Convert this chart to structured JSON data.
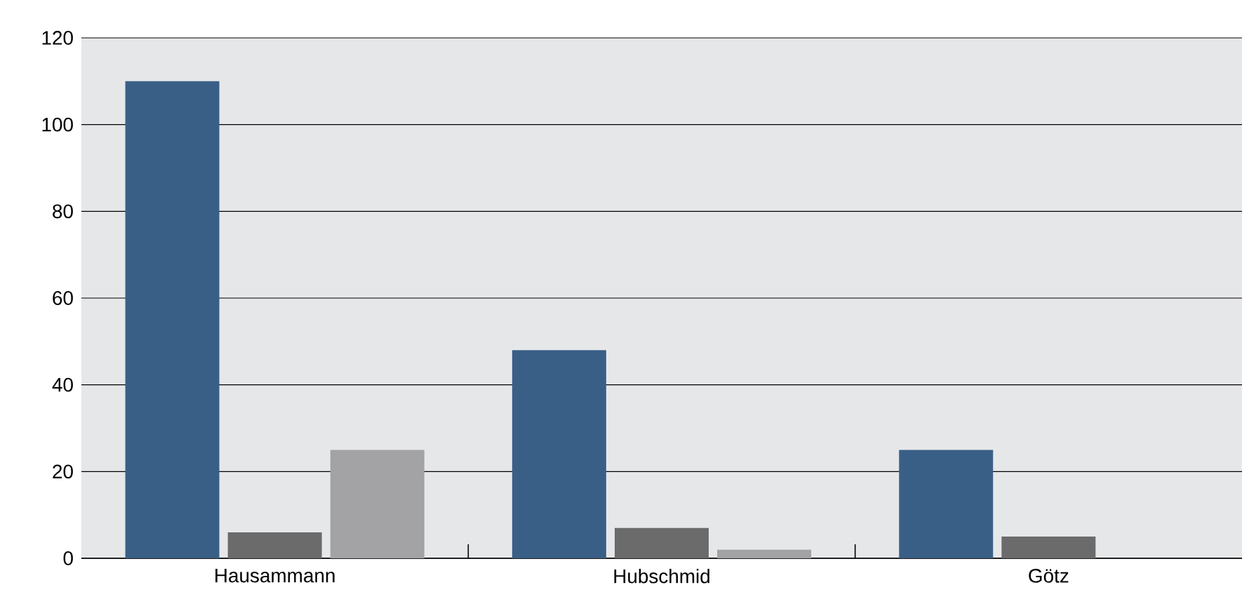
{
  "chart_data": {
    "type": "bar",
    "categories": [
      "Hausammann",
      "Hubschmid",
      "Götz"
    ],
    "series": [
      {
        "color": "#3a5f87",
        "values": [
          110,
          48,
          25
        ]
      },
      {
        "color": "#6b6b6b",
        "values": [
          6,
          7,
          5
        ]
      },
      {
        "color": "#a3a3a6",
        "values": [
          25,
          2,
          0
        ]
      }
    ],
    "ylim": [
      0,
      120
    ],
    "yticks": [
      0,
      20,
      40,
      60,
      80,
      100,
      120
    ],
    "grid": "y"
  }
}
